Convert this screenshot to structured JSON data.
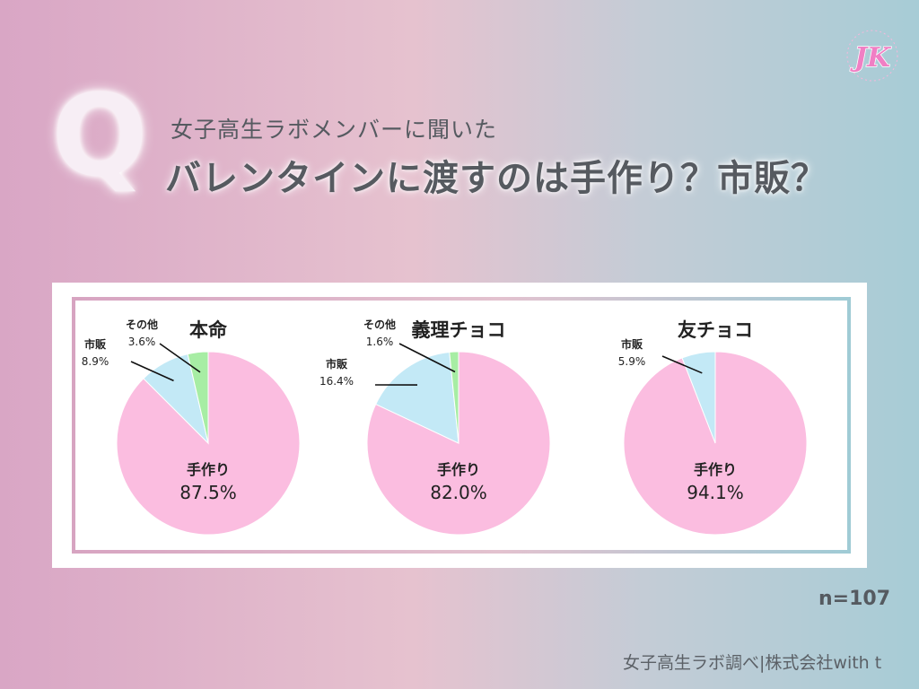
{
  "header": {
    "q_letter": "Q",
    "subtitle": "女子高生ラボメンバーに聞いた",
    "title": "バレンタインに渡すのは手作り？市販？"
  },
  "logo": {
    "text": "JK",
    "color": "#f07fc4"
  },
  "chart_data": [
    {
      "type": "pie",
      "title": "本命",
      "slices": [
        {
          "label": "手作り",
          "value": 87.5,
          "display": "87.5%",
          "color": "#fbbde0"
        },
        {
          "label": "市販",
          "value": 8.9,
          "display": "8.9%",
          "color": "#c3e9f6"
        },
        {
          "label": "その他",
          "value": 3.6,
          "display": "3.6%",
          "color": "#a7eda4"
        }
      ]
    },
    {
      "type": "pie",
      "title": "義理チョコ",
      "slices": [
        {
          "label": "手作り",
          "value": 82.0,
          "display": "82.0%",
          "color": "#fbbde0"
        },
        {
          "label": "市販",
          "value": 16.4,
          "display": "16.4%",
          "color": "#c3e9f6"
        },
        {
          "label": "その他",
          "value": 1.6,
          "display": "1.6%",
          "color": "#a7eda4"
        }
      ]
    },
    {
      "type": "pie",
      "title": "友チョコ",
      "slices": [
        {
          "label": "手作り",
          "value": 94.1,
          "display": "94.1%",
          "color": "#fbbde0"
        },
        {
          "label": "市販",
          "value": 5.9,
          "display": "5.9%",
          "color": "#c3e9f6"
        }
      ]
    }
  ],
  "sample_size": "n=107",
  "credit": "女子高生ラボ調べ|株式会社with t"
}
